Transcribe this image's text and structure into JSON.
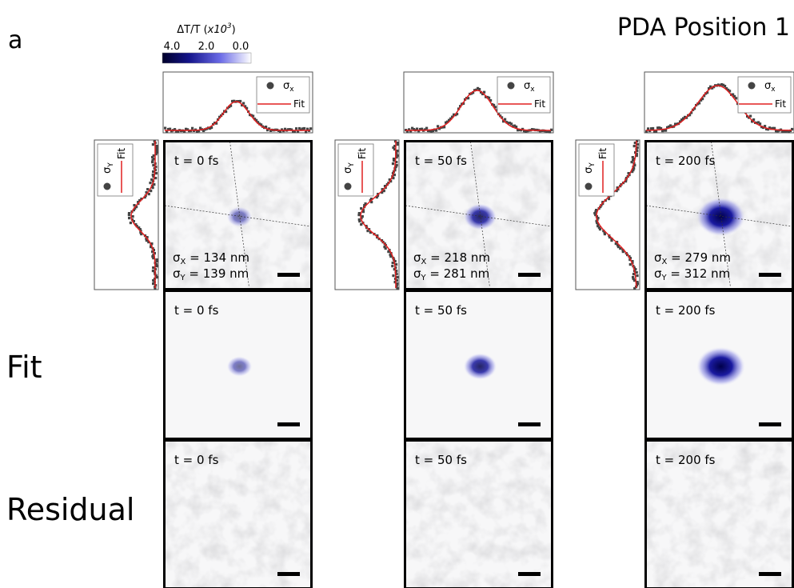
{
  "panel_label": "a",
  "title": "PDA Position 1",
  "colorbar": {
    "label": "ΔT/T (",
    "label_italic": "x10",
    "label_sup": "3",
    "label_end": ")",
    "ticks": [
      "4.0",
      "2.0",
      "0.0"
    ]
  },
  "row_labels": [
    "Fit",
    "Residual"
  ],
  "legend": {
    "symbol": "σ",
    "x_sub": "x",
    "y_sub": "Y",
    "fit": "Fit"
  },
  "stats": {
    "symbol": "σ",
    "x_sub": "X",
    "y_sub": "Y"
  },
  "columns": [
    {
      "panels": [
        {
          "time": "t = 0 fs"
        },
        {
          "time": "t = 0 fs"
        },
        {
          "time": "t = 0 fs"
        }
      ],
      "sigma_x": " = 134 nm",
      "sigma_y": " = 139 nm"
    },
    {
      "panels": [
        {
          "time": "t = 50 fs"
        },
        {
          "time": "t = 50 fs"
        },
        {
          "time": "t = 50 fs"
        }
      ],
      "sigma_x": " = 218 nm",
      "sigma_y": " = 281 nm"
    },
    {
      "panels": [
        {
          "time": "t = 200 fs"
        },
        {
          "time": "t = 200 fs"
        },
        {
          "time": "t = 200 fs"
        }
      ],
      "sigma_x": " = 279 nm",
      "sigma_y": " = 312 nm"
    }
  ]
}
